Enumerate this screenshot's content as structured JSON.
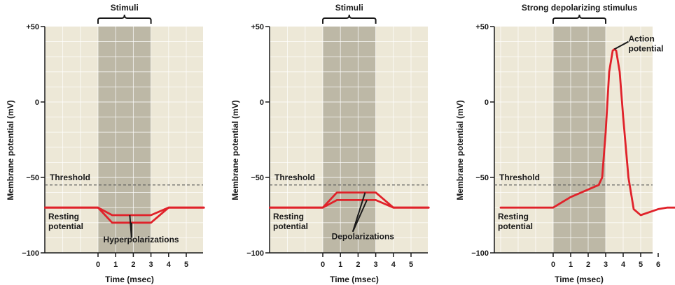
{
  "chart_data": [
    {
      "type": "line",
      "title": "Stimuli",
      "xlabel": "Time (msec)",
      "ylabel": "Membrane potential (mV)",
      "xlim": [
        -3,
        6
      ],
      "ylim": [
        -100,
        50
      ],
      "x_ticks": [
        0,
        1,
        2,
        3,
        4,
        5
      ],
      "y_ticks": [
        {
          "value": 50,
          "label": "+50"
        },
        {
          "value": 0,
          "label": "0"
        },
        {
          "value": -50,
          "label": "−50"
        },
        {
          "value": -100,
          "label": "−100"
        }
      ],
      "stimulus_interval": [
        0,
        3
      ],
      "threshold": {
        "value": -55,
        "label": "Threshold"
      },
      "resting_label": [
        "Resting",
        "potential"
      ],
      "annotation": {
        "lines": [
          "Hyperpolarizations"
        ],
        "x": 0.3,
        "y": -93,
        "pointer_from": [
          1.9,
          -90
        ],
        "pointers_to": [
          [
            1.9,
            -80
          ],
          [
            1.8,
            -75
          ]
        ]
      },
      "grid": true,
      "series": [
        {
          "x": [
            -3,
            0,
            0.8,
            3,
            4,
            6
          ],
          "y": [
            -70,
            -70,
            -75,
            -75,
            -70,
            -70
          ]
        },
        {
          "x": [
            -3,
            0,
            0.8,
            3,
            4,
            6
          ],
          "y": [
            -70,
            -70,
            -80,
            -80,
            -70,
            -70
          ]
        }
      ]
    },
    {
      "type": "line",
      "title": "Stimuli",
      "xlabel": "Time (msec)",
      "ylabel": "Membrane potential (mV)",
      "xlim": [
        -3,
        6
      ],
      "ylim": [
        -100,
        50
      ],
      "x_ticks": [
        0,
        1,
        2,
        3,
        4,
        5
      ],
      "y_ticks": [
        {
          "value": 50,
          "label": "+50"
        },
        {
          "value": 0,
          "label": "0"
        },
        {
          "value": -50,
          "label": "−50"
        },
        {
          "value": -100,
          "label": "−100"
        }
      ],
      "stimulus_interval": [
        0,
        3
      ],
      "threshold": {
        "value": -55,
        "label": "Threshold"
      },
      "resting_label": [
        "Resting",
        "potential"
      ],
      "annotation": {
        "lines": [
          "Depolarizations"
        ],
        "x": 0.5,
        "y": -91,
        "pointer_from": [
          1.7,
          -86
        ],
        "pointers_to": [
          [
            2.4,
            -60
          ],
          [
            2.5,
            -65
          ]
        ]
      },
      "grid": true,
      "series": [
        {
          "x": [
            -3,
            0,
            0.8,
            3,
            4,
            6
          ],
          "y": [
            -70,
            -70,
            -60,
            -60,
            -70,
            -70
          ]
        },
        {
          "x": [
            -3,
            0,
            0.8,
            3,
            4,
            6
          ],
          "y": [
            -70,
            -70,
            -65,
            -65,
            -70,
            -70
          ]
        }
      ]
    },
    {
      "type": "line",
      "title": "Strong depolarizing stimulus",
      "xlabel": "Time (msec)",
      "ylabel": "Membrane potential (mV)",
      "xlim": [
        -3,
        7
      ],
      "ylim": [
        -100,
        50
      ],
      "x_ticks": [
        0,
        1,
        2,
        3,
        4,
        5,
        6
      ],
      "y_ticks": [
        {
          "value": 50,
          "label": "+50"
        },
        {
          "value": 0,
          "label": "0"
        },
        {
          "value": -50,
          "label": "−50"
        },
        {
          "value": -100,
          "label": "−100"
        }
      ],
      "stimulus_interval": [
        0,
        3
      ],
      "threshold": {
        "value": -55,
        "label": "Threshold"
      },
      "resting_label": [
        "Resting",
        "potential"
      ],
      "annotation": {
        "lines": [
          "Action",
          "potential"
        ],
        "x": 4.3,
        "y": 40,
        "pointer_from": [
          4.3,
          40
        ],
        "pointers_to": [
          [
            3.5,
            35
          ]
        ]
      },
      "grid": true,
      "series": [
        {
          "x": [
            -3,
            0,
            1,
            2,
            2.6,
            2.8,
            3,
            3.2,
            3.4,
            3.5,
            3.6,
            3.8,
            4.0,
            4.3,
            4.6,
            5.0,
            5.5,
            6.0,
            6.5,
            7.0
          ],
          "y": [
            -70,
            -70,
            -63,
            -58,
            -55,
            -50,
            -20,
            20,
            34,
            35,
            34,
            20,
            -10,
            -50,
            -71,
            -75,
            -73,
            -71,
            -70,
            -70
          ]
        }
      ]
    }
  ]
}
